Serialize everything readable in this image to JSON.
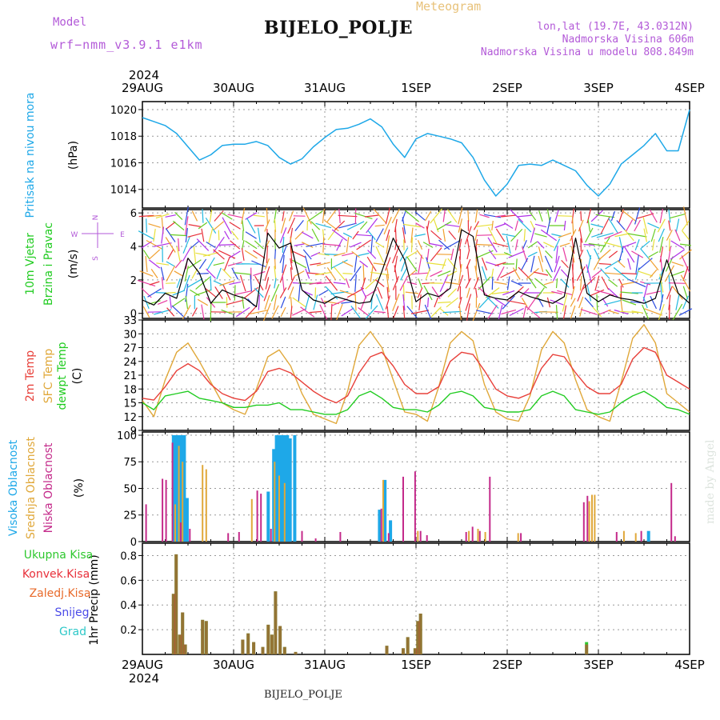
{
  "header": {
    "title": "BIJELO_POLJE",
    "subtitle": "Meteogram",
    "model_label": "Model",
    "model_name": "wrf−nmm_v3.9.1  e1km",
    "info": [
      "lon,lat (19.7E, 43.0312N)",
      "Nadmorska Visina 606m",
      "Nadmorska Visina u modelu 808.849m"
    ],
    "footer": "BIJELO_POLJE",
    "credit": "made by Angel"
  },
  "time_axis": {
    "year_label": "2024",
    "ticks": [
      "29AUG",
      "30AUG",
      "31AUG",
      "1SEP",
      "2SEP",
      "3SEP",
      "4SEP"
    ]
  },
  "colors": {
    "pressure": "#1ea8e8",
    "t2m": "#e8403a",
    "sfc": "#e0a83a",
    "dew": "#22cc22",
    "high_cloud": "#1ea8e8",
    "mid_cloud": "#e0a83a",
    "low_cloud": "#c42a8a",
    "total_precip": "#2ec82e",
    "conv_precip": "#e8303a",
    "frozen_precip": "#e86a2a",
    "snow": "#4a4ae8",
    "grad": "#2ec8c8",
    "magenta": "#b35ad8"
  },
  "chart_data": [
    {
      "type": "line",
      "panel": "pressure",
      "ylabel": "Pritisak na nivou mora",
      "unit": "(hPa)",
      "ylim": [
        1012.6,
        1020.6
      ],
      "yticks": [
        1014,
        1016,
        1018,
        1020
      ],
      "x_days": [
        0,
        0.125,
        0.25,
        0.375,
        0.5,
        0.625,
        0.75,
        0.875,
        1.0,
        1.125,
        1.25,
        1.375,
        1.5,
        1.625,
        1.75,
        1.875,
        2.0,
        2.125,
        2.25,
        2.375,
        2.5,
        2.625,
        2.75,
        2.875,
        3.0,
        3.125,
        3.25,
        3.375,
        3.5,
        3.625,
        3.75,
        3.875,
        4.0,
        4.125,
        4.25,
        4.375,
        4.5,
        4.625,
        4.75,
        4.875,
        5.0,
        5.125,
        5.25,
        5.375,
        5.5,
        5.625,
        5.75,
        5.875,
        6.0
      ],
      "series": [
        {
          "values": [
            1019.4,
            1019.1,
            1018.8,
            1018.2,
            1017.2,
            1016.2,
            1016.6,
            1017.3,
            1017.4,
            1017.4,
            1017.6,
            1017.3,
            1016.4,
            1015.9,
            1016.3,
            1017.2,
            1017.9,
            1018.5,
            1018.6,
            1018.9,
            1019.3,
            1018.7,
            1017.4,
            1016.4,
            1017.8,
            1018.2,
            1018.0,
            1017.8,
            1017.5,
            1016.4,
            1014.7,
            1013.5,
            1014.4,
            1015.8,
            1015.9,
            1015.8,
            1016.2,
            1015.8,
            1015.4,
            1014.3,
            1013.5,
            1014.4,
            1015.9,
            1016.6,
            1017.3,
            1018.2,
            1016.9,
            1016.9,
            1020.0
          ]
        }
      ]
    },
    {
      "type": "line",
      "panel": "wind",
      "ylabel": "10m Vjetar Brzina i Pravac",
      "unit": "(m/s)",
      "compass": {
        "n": "N",
        "s": "S",
        "w": "W",
        "e": "E"
      },
      "ylim": [
        -0.3,
        6.2
      ],
      "yticks": [
        0,
        2,
        4,
        6
      ],
      "x_days": [
        0,
        0.125,
        0.25,
        0.375,
        0.5,
        0.625,
        0.75,
        0.875,
        1.0,
        1.125,
        1.25,
        1.375,
        1.5,
        1.625,
        1.75,
        1.875,
        2.0,
        2.125,
        2.25,
        2.375,
        2.5,
        2.625,
        2.75,
        2.875,
        3.0,
        3.125,
        3.25,
        3.375,
        3.5,
        3.625,
        3.75,
        3.875,
        4.0,
        4.125,
        4.25,
        4.375,
        4.5,
        4.625,
        4.75,
        4.875,
        5.0,
        5.125,
        5.25,
        5.375,
        5.5,
        5.625,
        5.75,
        5.875,
        6.0
      ],
      "series": [
        {
          "values": [
            0.8,
            0.5,
            1.2,
            0.9,
            3.3,
            2.4,
            0.6,
            1.4,
            1.1,
            0.9,
            0.4,
            4.8,
            3.9,
            4.2,
            1.4,
            0.8,
            0.6,
            1.0,
            0.8,
            0.6,
            0.7,
            2.5,
            4.5,
            3.2,
            0.7,
            1.2,
            1.0,
            1.5,
            5.0,
            4.6,
            1.1,
            0.9,
            0.8,
            1.3,
            1.0,
            0.8,
            0.6,
            1.0,
            4.5,
            1.2,
            0.7,
            1.1,
            0.9,
            0.8,
            0.6,
            0.9,
            3.2,
            1.2,
            0.6
          ]
        }
      ]
    },
    {
      "type": "line",
      "panel": "temperature",
      "ylabel": "2m Temp / SFC Temp / dewpt Temp",
      "unit": "(C)",
      "ylim": [
        9,
        33
      ],
      "yticks": [
        9,
        12,
        15,
        18,
        21,
        24,
        27,
        30,
        33
      ],
      "x_days": [
        0,
        0.125,
        0.25,
        0.375,
        0.5,
        0.625,
        0.75,
        0.875,
        1.0,
        1.125,
        1.25,
        1.375,
        1.5,
        1.625,
        1.75,
        1.875,
        2.0,
        2.125,
        2.25,
        2.375,
        2.5,
        2.625,
        2.75,
        2.875,
        3.0,
        3.125,
        3.25,
        3.375,
        3.5,
        3.625,
        3.75,
        3.875,
        4.0,
        4.125,
        4.25,
        4.375,
        4.5,
        4.625,
        4.75,
        4.875,
        5.0,
        5.125,
        5.25,
        5.375,
        5.5,
        5.625,
        5.75,
        5.875,
        6.0
      ],
      "series": [
        {
          "name": "2m Temp",
          "values": [
            16.0,
            15.6,
            18.5,
            22.0,
            23.5,
            22.0,
            19.0,
            17.0,
            16.0,
            15.5,
            17.5,
            21.8,
            22.5,
            21.5,
            19.5,
            17.5,
            16.0,
            15.0,
            16.5,
            21.5,
            25.0,
            26.0,
            23.0,
            19.0,
            17.0,
            17.0,
            18.5,
            24.0,
            26.0,
            25.5,
            22.0,
            18.0,
            16.5,
            16.0,
            17.0,
            22.5,
            25.5,
            25.0,
            21.5,
            18.5,
            17.0,
            17.0,
            19.0,
            24.5,
            27.0,
            26.0,
            21.0,
            19.5,
            18.0
          ]
        },
        {
          "name": "SFC Temp",
          "values": [
            15.5,
            12.0,
            20.0,
            26.0,
            28.0,
            24.0,
            19.5,
            15.0,
            13.5,
            12.5,
            18.0,
            25.0,
            26.5,
            23.0,
            17.0,
            12.5,
            11.5,
            10.5,
            17.5,
            27.5,
            30.5,
            27.0,
            20.0,
            13.0,
            12.5,
            11.0,
            18.5,
            28.0,
            30.5,
            28.5,
            19.0,
            13.0,
            11.5,
            11.0,
            16.5,
            26.5,
            30.5,
            28.0,
            20.0,
            13.5,
            12.0,
            11.0,
            19.5,
            29.0,
            32.0,
            28.0,
            17.0,
            15.0,
            13.0
          ]
        },
        {
          "name": "dewpt Temp",
          "values": [
            15.0,
            13.5,
            16.5,
            17.0,
            17.5,
            16.0,
            15.5,
            15.0,
            14.0,
            14.0,
            14.5,
            14.5,
            15.0,
            13.5,
            13.5,
            13.0,
            12.5,
            12.5,
            13.5,
            16.5,
            17.5,
            16.0,
            14.0,
            13.5,
            13.5,
            13.0,
            14.5,
            17.0,
            17.5,
            16.5,
            14.0,
            13.5,
            13.0,
            13.0,
            13.5,
            16.5,
            17.5,
            16.5,
            13.5,
            13.0,
            12.5,
            13.0,
            15.0,
            16.5,
            17.5,
            16.0,
            14.0,
            13.5,
            12.5
          ]
        }
      ]
    },
    {
      "type": "bar",
      "panel": "clouds",
      "ylabel": "Visoka Oblacnost / Srednja Oblacnost / Niska Oblacnost",
      "unit": "(%)",
      "ylim": [
        0,
        103
      ],
      "yticks": [
        0,
        25,
        50,
        75,
        100
      ],
      "series": [
        {
          "name": "Visoka Oblacnost",
          "points": [
            [
              0.34,
              100
            ],
            [
              0.37,
              100
            ],
            [
              0.4,
              100
            ],
            [
              0.43,
              100
            ],
            [
              0.46,
              100
            ],
            [
              0.49,
              41
            ],
            [
              1.38,
              47
            ],
            [
              1.44,
              87
            ],
            [
              1.47,
              100
            ],
            [
              1.5,
              100
            ],
            [
              1.53,
              100
            ],
            [
              1.56,
              100
            ],
            [
              1.59,
              100
            ],
            [
              1.62,
              97
            ],
            [
              1.67,
              100
            ],
            [
              2.6,
              30
            ],
            [
              2.66,
              58
            ],
            [
              2.72,
              20
            ],
            [
              5.55,
              10
            ]
          ]
        },
        {
          "name": "Srednja Oblacnost",
          "points": [
            [
              0.36,
              35
            ],
            [
              0.4,
              90
            ],
            [
              0.44,
              75
            ],
            [
              0.66,
              72
            ],
            [
              0.7,
              68
            ],
            [
              1.2,
              40
            ],
            [
              1.45,
              75
            ],
            [
              1.5,
              62
            ],
            [
              1.56,
              55
            ],
            [
              2.64,
              58
            ],
            [
              3.02,
              10
            ],
            [
              3.58,
              10
            ],
            [
              3.68,
              12
            ],
            [
              3.76,
              9
            ],
            [
              4.12,
              8
            ],
            [
              4.9,
              38
            ],
            [
              4.93,
              44
            ],
            [
              4.96,
              44
            ],
            [
              5.28,
              10
            ],
            [
              5.41,
              8
            ]
          ]
        },
        {
          "name": "Niska Oblacnost",
          "points": [
            [
              0.04,
              35
            ],
            [
              0.22,
              59
            ],
            [
              0.26,
              58
            ],
            [
              0.33,
              93
            ],
            [
              0.42,
              18
            ],
            [
              0.52,
              12
            ],
            [
              0.94,
              8
            ],
            [
              1.06,
              9
            ],
            [
              1.26,
              48
            ],
            [
              1.3,
              45
            ],
            [
              1.41,
              12
            ],
            [
              1.75,
              10
            ],
            [
              1.9,
              3
            ],
            [
              2.17,
              9
            ],
            [
              2.62,
              31
            ],
            [
              2.7,
              8
            ],
            [
              2.86,
              61
            ],
            [
              2.99,
              66
            ],
            [
              3.05,
              10
            ],
            [
              3.12,
              6
            ],
            [
              3.55,
              9
            ],
            [
              3.62,
              14
            ],
            [
              3.7,
              10
            ],
            [
              3.81,
              61
            ],
            [
              4.15,
              8
            ],
            [
              4.84,
              37
            ],
            [
              4.88,
              43
            ],
            [
              5.2,
              9
            ],
            [
              5.47,
              10
            ],
            [
              5.8,
              55
            ],
            [
              5.84,
              5
            ]
          ]
        }
      ]
    },
    {
      "type": "bar",
      "panel": "precip",
      "ylabel": "1hr Precip",
      "unit": "(mm)",
      "legend": [
        "Ukupna Kisa",
        "Konvek.Kisa",
        "Zaledj.Kisa",
        "Snijeg",
        "Grad"
      ],
      "ylim": [
        0,
        0.9
      ],
      "yticks": [
        0.2,
        0.4,
        0.6,
        0.8
      ],
      "series": [
        {
          "name": "Ukupna Kisa",
          "points": [
            [
              0.34,
              0.49
            ],
            [
              0.37,
              0.81
            ],
            [
              0.41,
              0.16
            ],
            [
              0.44,
              0.34
            ],
            [
              0.47,
              0.08
            ],
            [
              0.66,
              0.28
            ],
            [
              0.7,
              0.27
            ],
            [
              1.1,
              0.12
            ],
            [
              1.16,
              0.17
            ],
            [
              1.22,
              0.1
            ],
            [
              1.32,
              0.06
            ],
            [
              1.38,
              0.24
            ],
            [
              1.42,
              0.16
            ],
            [
              1.46,
              0.51
            ],
            [
              1.51,
              0.23
            ],
            [
              1.56,
              0.06
            ],
            [
              1.68,
              0.02
            ],
            [
              2.68,
              0.07
            ],
            [
              2.86,
              0.05
            ],
            [
              2.91,
              0.14
            ],
            [
              2.99,
              0.05
            ],
            [
              3.02,
              0.27
            ],
            [
              3.05,
              0.33
            ],
            [
              4.87,
              0.1
            ]
          ]
        },
        {
          "name": "Konvek.Kisa",
          "points": [
            [
              0.34,
              0.49
            ],
            [
              0.37,
              0.81
            ],
            [
              0.41,
              0.16
            ],
            [
              0.44,
              0.34
            ],
            [
              0.47,
              0.08
            ],
            [
              0.66,
              0.28
            ],
            [
              0.7,
              0.27
            ],
            [
              1.1,
              0.12
            ],
            [
              1.16,
              0.17
            ],
            [
              1.22,
              0.1
            ],
            [
              1.32,
              0.06
            ],
            [
              1.38,
              0.24
            ],
            [
              1.42,
              0.16
            ],
            [
              1.46,
              0.51
            ],
            [
              1.51,
              0.23
            ],
            [
              1.56,
              0.06
            ],
            [
              1.68,
              0.02
            ],
            [
              2.68,
              0.07
            ],
            [
              2.86,
              0.05
            ],
            [
              2.91,
              0.14
            ],
            [
              2.99,
              0.05
            ],
            [
              3.02,
              0.27
            ],
            [
              3.05,
              0.33
            ],
            [
              4.87,
              0.08
            ]
          ]
        }
      ]
    }
  ]
}
